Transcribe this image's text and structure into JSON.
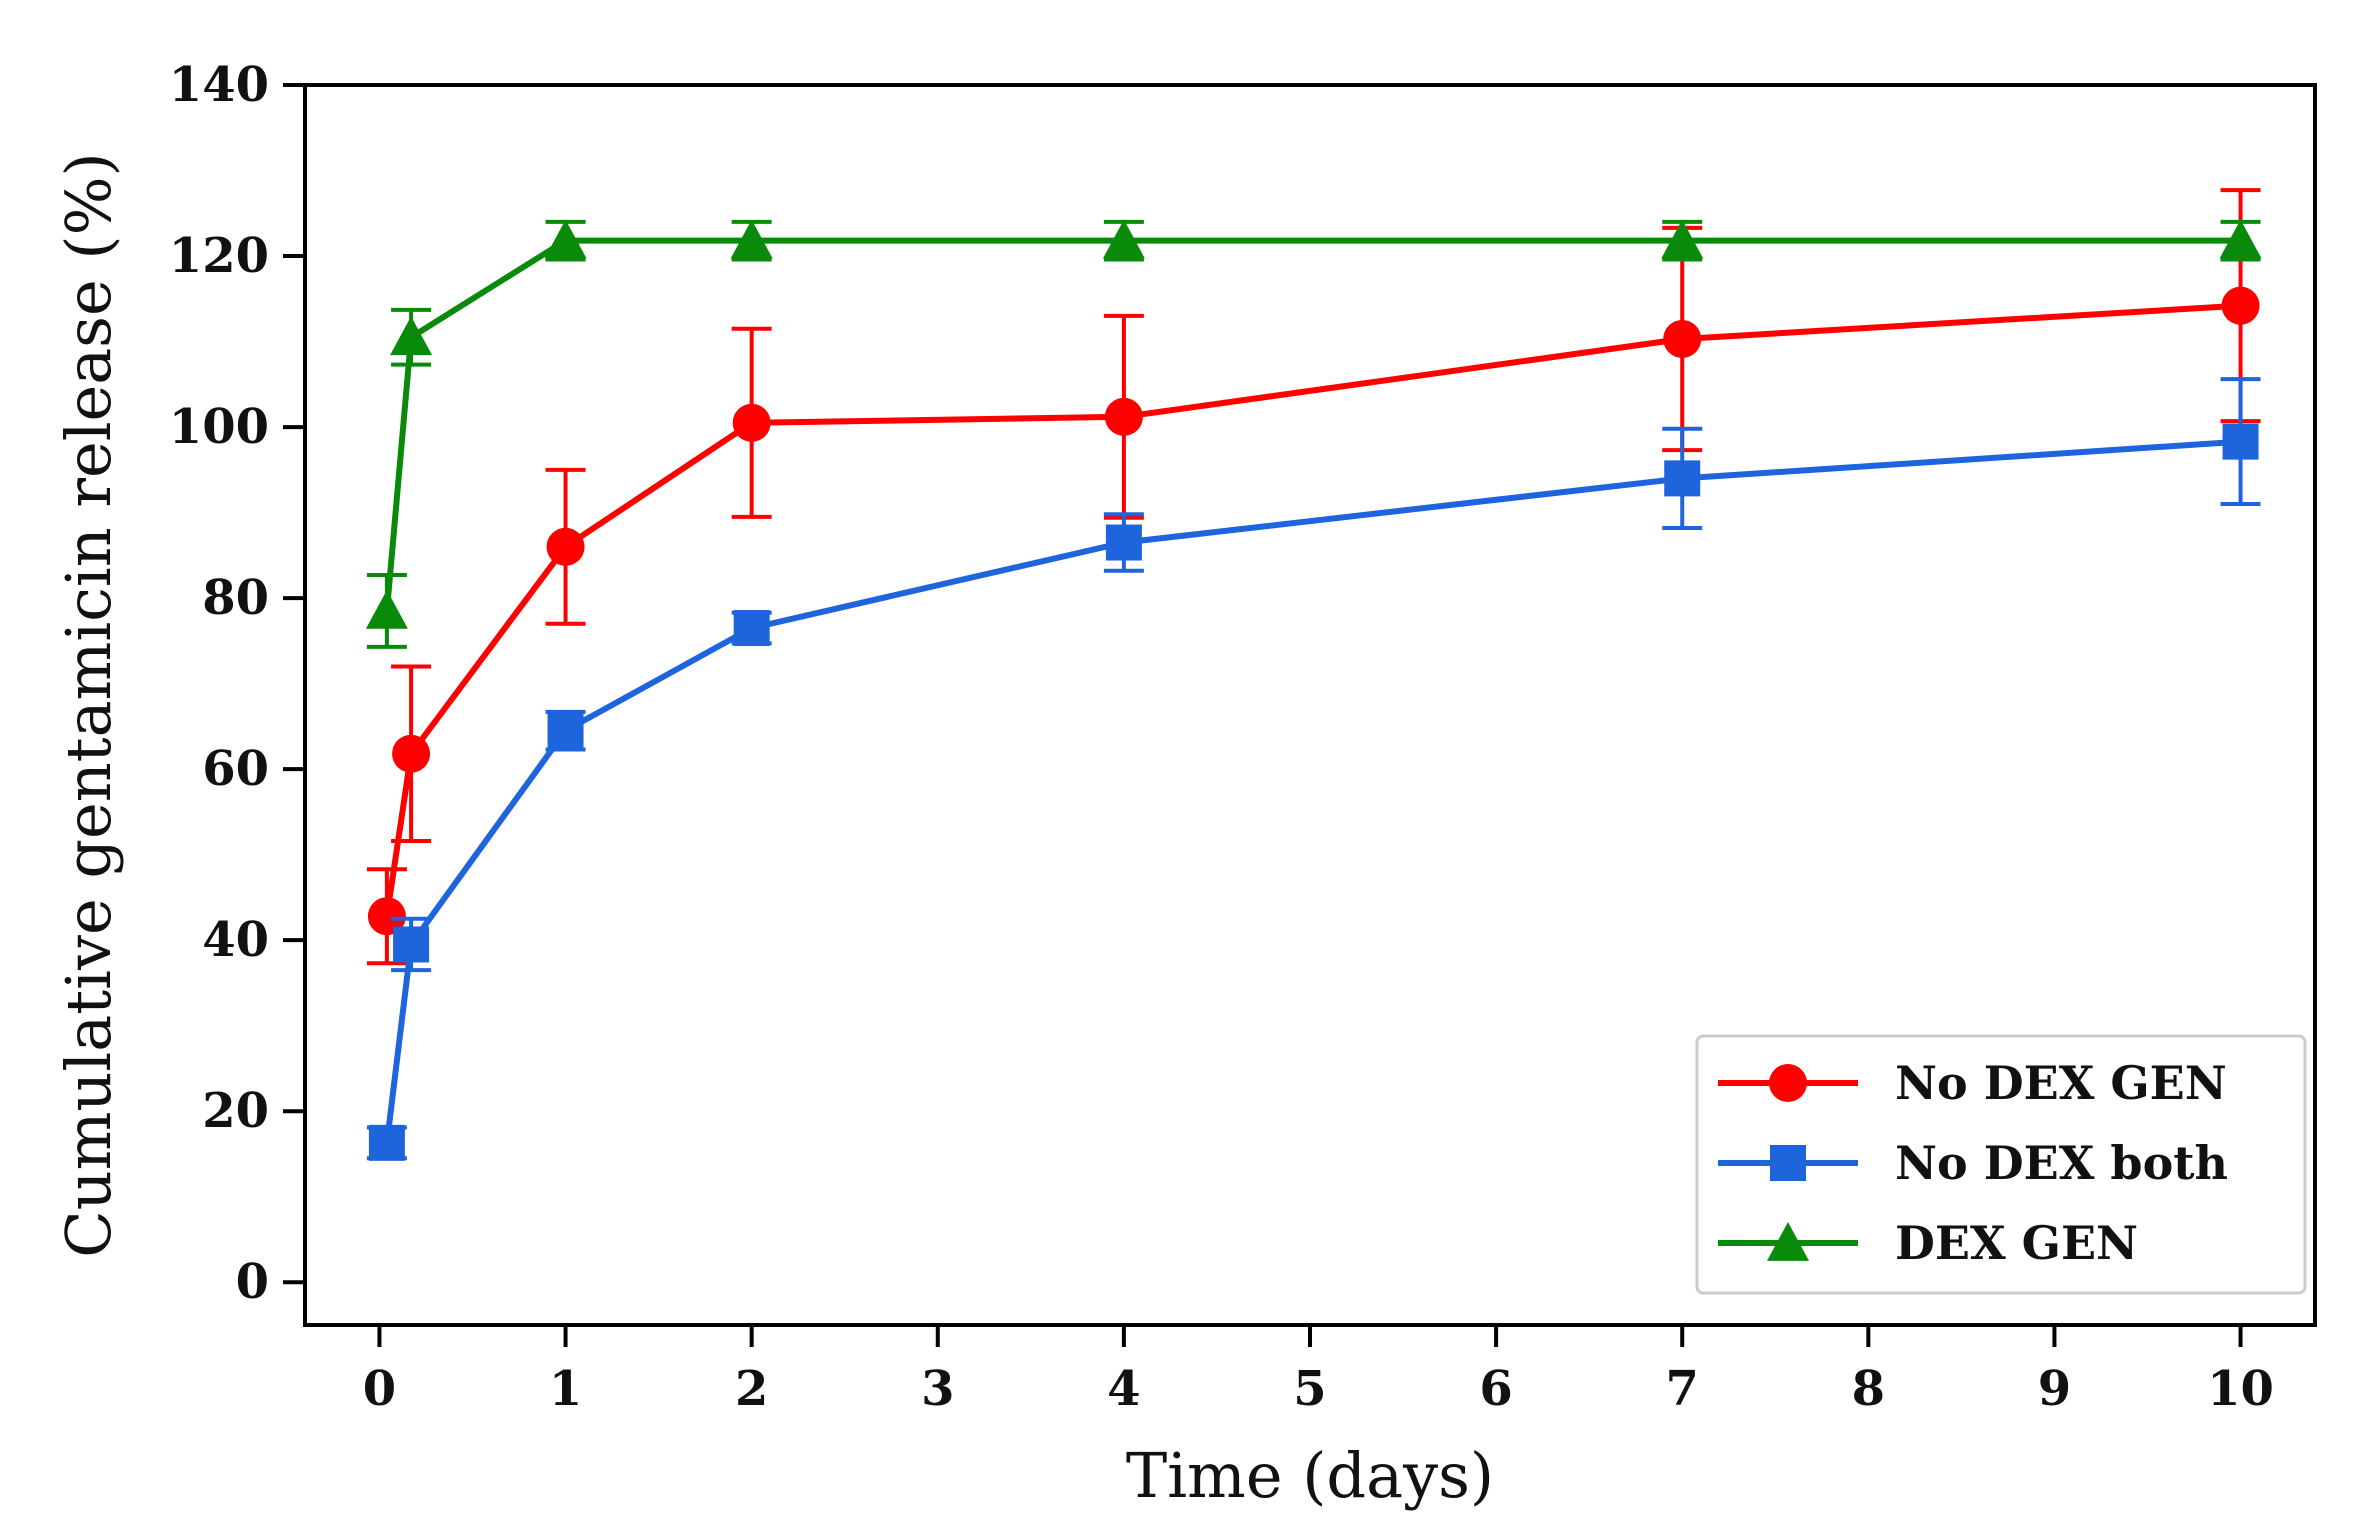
{
  "chart_data": {
    "type": "line",
    "title": "",
    "xlabel": "Time (days)",
    "ylabel": "Cumulative gentamicin release (%)",
    "xlim": [
      -0.4,
      10.4
    ],
    "ylim": [
      -5,
      140
    ],
    "xticks": [
      0,
      1,
      2,
      3,
      4,
      5,
      6,
      7,
      8,
      9,
      10
    ],
    "yticks": [
      0,
      20,
      40,
      60,
      80,
      100,
      120,
      140
    ],
    "xtick_labels": [
      "0",
      "1",
      "2",
      "3",
      "4",
      "5",
      "6",
      "7",
      "8",
      "9",
      "10"
    ],
    "ytick_labels": [
      "0",
      "20",
      "40",
      "60",
      "80",
      "100",
      "120",
      "140"
    ],
    "grid": false,
    "legend_position": "bottom-right",
    "series": [
      {
        "name": "No DEX GEN",
        "color": "#ff0000",
        "marker": "circle",
        "x": [
          0.04,
          0.17,
          1,
          2,
          4,
          7,
          10
        ],
        "values": [
          42.8,
          61.8,
          86.0,
          100.5,
          101.2,
          110.3,
          114.2
        ],
        "errors": [
          5.5,
          10.2,
          9.0,
          11.0,
          11.8,
          13.0,
          13.5
        ]
      },
      {
        "name": "No DEX both",
        "color": "#1e64dc",
        "marker": "square",
        "x": [
          0.04,
          0.17,
          1,
          2,
          4,
          7,
          10
        ],
        "values": [
          16.3,
          39.5,
          64.5,
          76.5,
          86.5,
          94.0,
          98.3
        ],
        "errors": [
          1.8,
          3.0,
          2.2,
          1.8,
          3.3,
          5.8,
          7.3
        ]
      },
      {
        "name": "DEX GEN",
        "color": "#0a8a0a",
        "marker": "triangle",
        "x": [
          0.04,
          0.17,
          1,
          2,
          4,
          7,
          10
        ],
        "values": [
          78.5,
          110.5,
          121.8,
          121.8,
          121.8,
          121.8,
          121.8
        ],
        "errors": [
          4.2,
          3.2,
          2.2,
          2.2,
          2.2,
          2.2,
          2.2
        ]
      }
    ]
  }
}
